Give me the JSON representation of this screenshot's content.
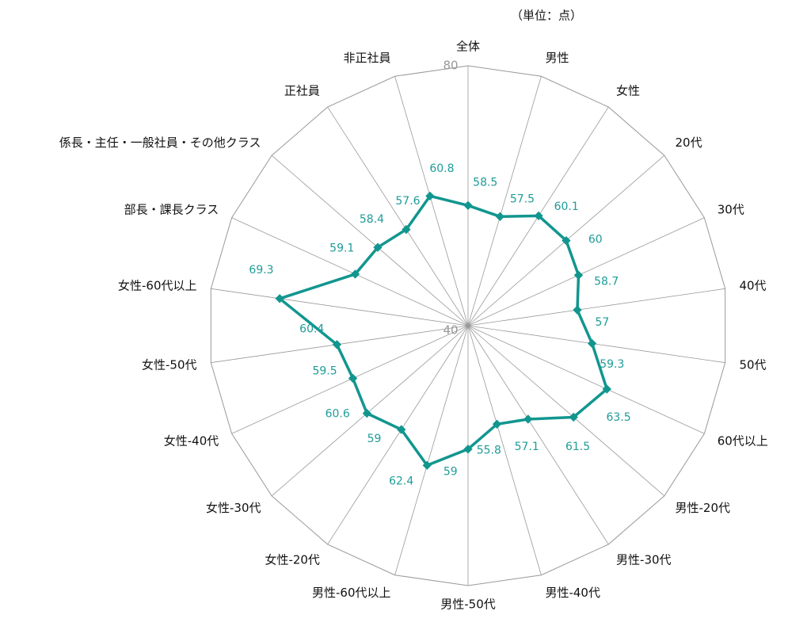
{
  "chart_data": {
    "type": "radar",
    "note": "（単位：点）",
    "categories": [
      "全体",
      "男性",
      "女性",
      "20代",
      "30代",
      "40代",
      "50代",
      "60代以上",
      "男性-20代",
      "男性-30代",
      "男性-40代",
      "男性-50代",
      "男性-60代以上",
      "女性-20代",
      "女性-30代",
      "女性-40代",
      "女性-50代",
      "女性-60代以上",
      "部長・課長クラス",
      "係長・主任・一般社員・その他クラス",
      "正社員",
      "非正社員"
    ],
    "values": [
      58.5,
      57.5,
      60.1,
      60.0,
      58.7,
      57.0,
      59.3,
      63.5,
      61.5,
      57.1,
      55.8,
      59.0,
      62.4,
      59.0,
      60.6,
      59.5,
      60.4,
      69.3,
      59.1,
      58.4,
      57.6,
      60.8
    ],
    "color": "#11968f",
    "ylim": [
      40,
      80
    ],
    "yticks": [
      40,
      80
    ]
  }
}
